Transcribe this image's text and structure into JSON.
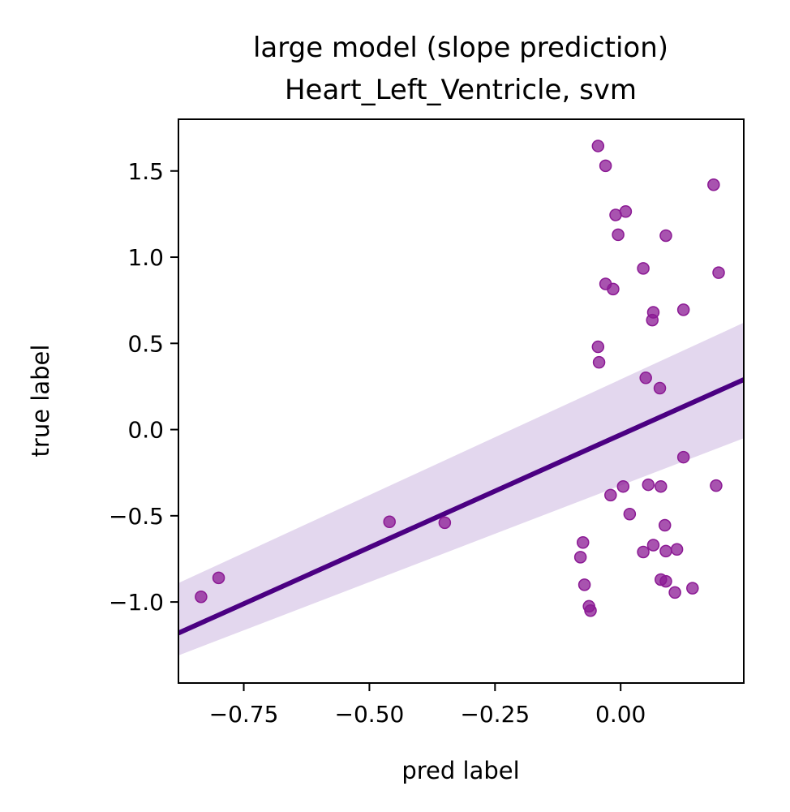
{
  "chart_data": {
    "type": "scatter",
    "title": "large model (slope prediction)",
    "subtitle": "Heart_Left_Ventricle, svm",
    "xlabel": "pred label",
    "ylabel": "true label",
    "xlim": [
      -0.88,
      0.245
    ],
    "ylim": [
      -1.47,
      1.8
    ],
    "xticks": [
      -0.75,
      -0.5,
      -0.25,
      0.0
    ],
    "xtick_labels": [
      "−0.75",
      "−0.50",
      "−0.25",
      "0.00"
    ],
    "yticks": [
      -1.0,
      -0.5,
      0.0,
      0.5,
      1.0,
      1.5
    ],
    "ytick_labels": [
      "−1.0",
      "−0.5",
      "0.0",
      "0.5",
      "1.0",
      "1.5"
    ],
    "grid": false,
    "point_color": "#8b1a94",
    "line_color": "#4b0082",
    "band_color": "#e3d7ee",
    "regression": {
      "x": [
        -0.88,
        0.245
      ],
      "y": [
        -1.18,
        0.29
      ],
      "ci_upper": [
        -0.89,
        0.62
      ],
      "ci_lower": [
        -1.31,
        -0.05
      ]
    },
    "points": [
      {
        "x": -0.835,
        "y": -0.97
      },
      {
        "x": -0.8,
        "y": -0.86
      },
      {
        "x": -0.46,
        "y": -0.535
      },
      {
        "x": -0.35,
        "y": -0.54
      },
      {
        "x": -0.045,
        "y": 1.645
      },
      {
        "x": -0.03,
        "y": 1.53
      },
      {
        "x": -0.01,
        "y": 1.245
      },
      {
        "x": 0.01,
        "y": 1.265
      },
      {
        "x": -0.005,
        "y": 1.13
      },
      {
        "x": 0.09,
        "y": 1.125
      },
      {
        "x": 0.185,
        "y": 1.42
      },
      {
        "x": 0.195,
        "y": 0.91
      },
      {
        "x": 0.045,
        "y": 0.935
      },
      {
        "x": -0.03,
        "y": 0.845
      },
      {
        "x": -0.015,
        "y": 0.815
      },
      {
        "x": 0.065,
        "y": 0.68
      },
      {
        "x": 0.063,
        "y": 0.635
      },
      {
        "x": 0.125,
        "y": 0.695
      },
      {
        "x": -0.045,
        "y": 0.48
      },
      {
        "x": -0.043,
        "y": 0.39
      },
      {
        "x": 0.05,
        "y": 0.3
      },
      {
        "x": 0.078,
        "y": 0.24
      },
      {
        "x": 0.125,
        "y": -0.16
      },
      {
        "x": 0.19,
        "y": -0.325
      },
      {
        "x": 0.055,
        "y": -0.32
      },
      {
        "x": 0.08,
        "y": -0.33
      },
      {
        "x": 0.005,
        "y": -0.33
      },
      {
        "x": -0.02,
        "y": -0.38
      },
      {
        "x": 0.018,
        "y": -0.49
      },
      {
        "x": 0.088,
        "y": -0.555
      },
      {
        "x": 0.065,
        "y": -0.67
      },
      {
        "x": 0.045,
        "y": -0.71
      },
      {
        "x": 0.09,
        "y": -0.705
      },
      {
        "x": 0.112,
        "y": -0.695
      },
      {
        "x": -0.075,
        "y": -0.655
      },
      {
        "x": -0.08,
        "y": -0.74
      },
      {
        "x": -0.072,
        "y": -0.9
      },
      {
        "x": 0.08,
        "y": -0.87
      },
      {
        "x": 0.09,
        "y": -0.88
      },
      {
        "x": 0.143,
        "y": -0.92
      },
      {
        "x": 0.108,
        "y": -0.945
      },
      {
        "x": -0.063,
        "y": -1.025
      },
      {
        "x": -0.06,
        "y": -1.05
      }
    ]
  }
}
